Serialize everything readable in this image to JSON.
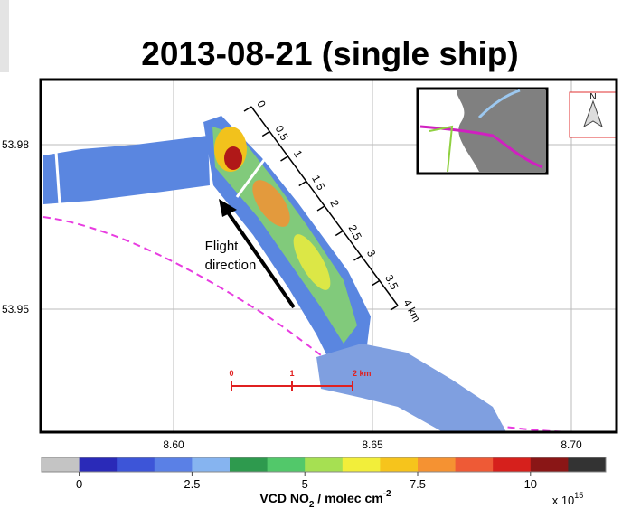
{
  "map": {
    "title": "2013-08-21 (single ship)",
    "lat_ticks": [
      53.98,
      53.95
    ],
    "lon_ticks": [
      {
        "value": 8.6,
        "label": "8.60"
      },
      8.65,
      {
        "value": 8.7,
        "label": "8.70"
      }
    ],
    "annotation": [
      "Flight",
      "direction"
    ],
    "distance_scale": [
      "0",
      "0.5",
      "1",
      "1.5",
      "2",
      "2.5",
      "3",
      "3.5",
      "4 km"
    ],
    "red_scale": [
      "0",
      "1",
      "2 km"
    ],
    "north": "N"
  },
  "colorbar": {
    "colors": [
      "#c4c4c4",
      "#2a2ab8",
      "#3d55d8",
      "#5a80e6",
      "#86b4f0",
      "#2e9a4e",
      "#52c86a",
      "#a6e052",
      "#f2ee3a",
      "#f6c41c",
      "#f59232",
      "#ee5a36",
      "#d6201c",
      "#8a1616",
      "#333333"
    ],
    "ticks": [
      0,
      2.5,
      5,
      7.5,
      10
    ],
    "label": {
      "text": "VCD NO",
      "sub": "2",
      "middle": " / molec cm",
      "sup": "-2"
    },
    "multiplier": {
      "text": "x 10",
      "sup": "15"
    }
  }
}
